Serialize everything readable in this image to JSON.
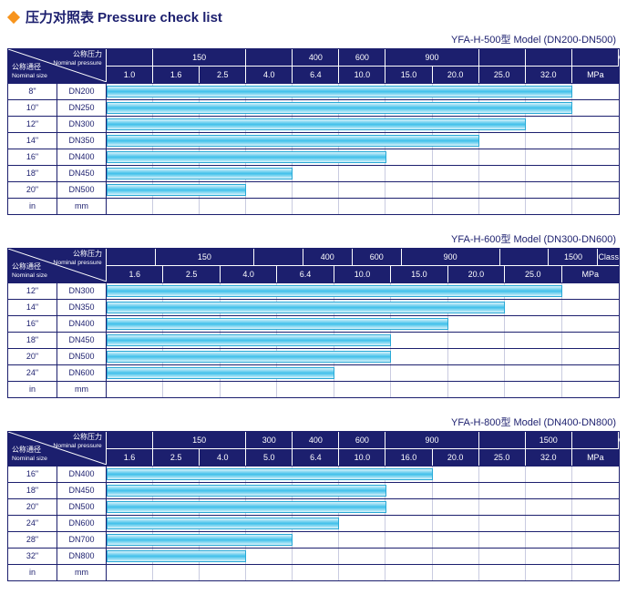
{
  "page_title": "压力对照表 Pressure check list",
  "colors": {
    "header_bg": "#1c1f6e",
    "header_fg": "#ffffff",
    "border": "#1c1f6e",
    "grid_line": "#c9cbe0",
    "bar_gradient_top": "#d9f3fb",
    "bar_gradient_mid": "#3fc0ea",
    "bar_border": "#29a9d6",
    "diamond": "#f7941d",
    "text": "#1c1f6e"
  },
  "typography": {
    "title_fontsize_pt": 11,
    "header_fontsize_pt": 7,
    "cell_fontsize_pt": 7
  },
  "corner_labels": {
    "top_right_cn": "公称压力",
    "top_right_en": "Nominal pressure",
    "bottom_left_cn": "公称通径",
    "bottom_left_en": "Nominal size"
  },
  "unit_row": {
    "in": "in",
    "mm": "mm"
  },
  "class_label": "Class",
  "mpa_label": "MPa",
  "charts": [
    {
      "model_label": "YFA-H-500型  Model (DN200-DN500)",
      "class_row": [
        {
          "label": "",
          "span": 1
        },
        {
          "label": "150",
          "span": 2
        },
        {
          "label": "",
          "span": 1
        },
        {
          "label": "400",
          "span": 1
        },
        {
          "label": "600",
          "span": 1
        },
        {
          "label": "900",
          "span": 2
        },
        {
          "label": "",
          "span": 1
        },
        {
          "label": "",
          "span": 1
        },
        {
          "label": "",
          "span": 1
        }
      ],
      "mpa_cols": [
        "1.0",
        "1.6",
        "2.5",
        "4.0",
        "6.4",
        "10.0",
        "15.0",
        "20.0",
        "25.0",
        "32.0"
      ],
      "col_count": 11,
      "rows": [
        {
          "in": "8\"",
          "mm": "DN200",
          "bar_cols": 10
        },
        {
          "in": "10\"",
          "mm": "DN250",
          "bar_cols": 10
        },
        {
          "in": "12\"",
          "mm": "DN300",
          "bar_cols": 9
        },
        {
          "in": "14\"",
          "mm": "DN350",
          "bar_cols": 8
        },
        {
          "in": "16\"",
          "mm": "DN400",
          "bar_cols": 6
        },
        {
          "in": "18\"",
          "mm": "DN450",
          "bar_cols": 4
        },
        {
          "in": "20\"",
          "mm": "DN500",
          "bar_cols": 3
        }
      ]
    },
    {
      "model_label": "YFA-H-600型  Model (DN300-DN600)",
      "class_row": [
        {
          "label": "",
          "span": 1
        },
        {
          "label": "150",
          "span": 2
        },
        {
          "label": "",
          "span": 1
        },
        {
          "label": "400",
          "span": 1
        },
        {
          "label": "600",
          "span": 1
        },
        {
          "label": "900",
          "span": 2
        },
        {
          "label": "",
          "span": 1
        },
        {
          "label": "1500",
          "span": 1
        }
      ],
      "mpa_cols": [
        "1.6",
        "2.5",
        "4.0",
        "6.4",
        "10.0",
        "15.0",
        "20.0",
        "25.0"
      ],
      "col_count": 9,
      "rows": [
        {
          "in": "12\"",
          "mm": "DN300",
          "bar_cols": 8
        },
        {
          "in": "14\"",
          "mm": "DN350",
          "bar_cols": 7
        },
        {
          "in": "16\"",
          "mm": "DN400",
          "bar_cols": 6
        },
        {
          "in": "18\"",
          "mm": "DN450",
          "bar_cols": 5
        },
        {
          "in": "20\"",
          "mm": "DN500",
          "bar_cols": 5
        },
        {
          "in": "24\"",
          "mm": "DN600",
          "bar_cols": 4
        }
      ]
    },
    {
      "model_label": "YFA-H-800型  Model (DN400-DN800)",
      "class_row": [
        {
          "label": "",
          "span": 1
        },
        {
          "label": "150",
          "span": 2
        },
        {
          "label": "300",
          "span": 1
        },
        {
          "label": "400",
          "span": 1
        },
        {
          "label": "600",
          "span": 1
        },
        {
          "label": "900",
          "span": 2
        },
        {
          "label": "",
          "span": 1
        },
        {
          "label": "1500",
          "span": 1
        },
        {
          "label": "",
          "span": 1
        }
      ],
      "mpa_cols": [
        "1.6",
        "2.5",
        "4.0",
        "5.0",
        "6.4",
        "10.0",
        "16.0",
        "20.0",
        "25.0",
        "32.0"
      ],
      "col_count": 11,
      "rows": [
        {
          "in": "16\"",
          "mm": "DN400",
          "bar_cols": 7
        },
        {
          "in": "18\"",
          "mm": "DN450",
          "bar_cols": 6
        },
        {
          "in": "20\"",
          "mm": "DN500",
          "bar_cols": 6
        },
        {
          "in": "24\"",
          "mm": "DN600",
          "bar_cols": 5
        },
        {
          "in": "28\"",
          "mm": "DN700",
          "bar_cols": 4
        },
        {
          "in": "32\"",
          "mm": "DN800",
          "bar_cols": 3
        }
      ]
    }
  ]
}
